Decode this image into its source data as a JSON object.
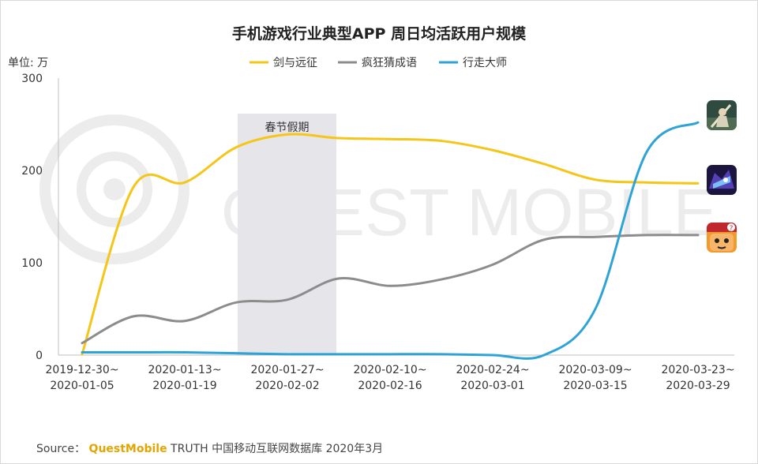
{
  "chart_data": {
    "type": "line",
    "title": "手机游戏行业典型APP 周日均活跃用户规模",
    "unit_label": "单位: 万",
    "ylim": [
      0,
      300
    ],
    "yticks": [
      "0",
      "100",
      "200",
      "300"
    ],
    "x_labels": [
      [
        "2019-12-30~",
        "2020-01-05"
      ],
      [
        "2020-01-13~",
        "2020-01-19"
      ],
      [
        "2020-01-27~",
        "2020-02-02"
      ],
      [
        "2020-02-10~",
        "2020-02-16"
      ],
      [
        "2020-02-24~",
        "2020-03-01"
      ],
      [
        "2020-03-09~",
        "2020-03-15"
      ],
      [
        "2020-03-23~",
        "2020-03-29"
      ]
    ],
    "x": [
      "2019-12-30",
      "2020-01-06",
      "2020-01-13",
      "2020-01-20",
      "2020-01-27",
      "2020-02-03",
      "2020-02-10",
      "2020-02-17",
      "2020-02-24",
      "2020-03-02",
      "2020-03-09",
      "2020-03-16",
      "2020-03-23"
    ],
    "series": [
      {
        "name": "剑与远征",
        "color": "#f5c518",
        "values": [
          1,
          182,
          187,
          225,
          239,
          235,
          234,
          232,
          222,
          207,
          190,
          187,
          186
        ]
      },
      {
        "name": "疯狂猜成语",
        "color": "#8c8c8c",
        "values": [
          13,
          42,
          37,
          57,
          60,
          83,
          75,
          82,
          98,
          125,
          128,
          130,
          130
        ]
      },
      {
        "name": "行走大师",
        "color": "#2ea3d6",
        "values": [
          3,
          3,
          3,
          2,
          1,
          1,
          1,
          1,
          0,
          0,
          50,
          220,
          252
        ]
      }
    ],
    "holiday_band": {
      "label": "春节假期",
      "from": "2020-01-20",
      "to": "2020-02-03"
    },
    "legend_position": "top-center",
    "grid": false
  },
  "watermark": "QUEST MOBILE",
  "source": {
    "prefix": "Source：",
    "brand": "QuestMobile",
    "text": " TRUTH 中国移动互联网数据库 2020年3月"
  },
  "icons": [
    "sword-warrior-icon",
    "blue-dragon-icon",
    "cartoon-face-icon"
  ]
}
